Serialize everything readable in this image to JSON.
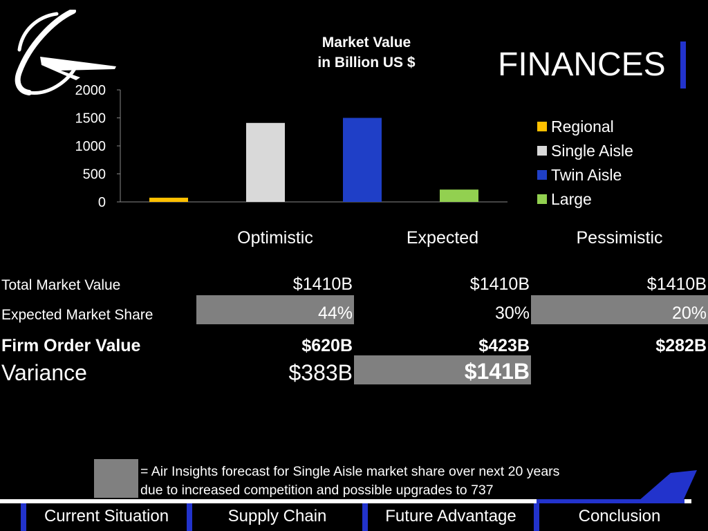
{
  "header": {
    "title": "FINANCES"
  },
  "chart_data": {
    "type": "bar",
    "title": "Market Value\nin Billion US $",
    "title_lines": [
      "Market Value",
      "in Billion US $"
    ],
    "categories": [
      "Regional",
      "Single Aisle",
      "Twin Aisle",
      "Large"
    ],
    "values": [
      75,
      1410,
      1500,
      220
    ],
    "colors": [
      "#ffc000",
      "#d9d9d9",
      "#1f3fc7",
      "#92d050"
    ],
    "legend": [
      "Regional",
      "Single Aisle",
      "Twin Aisle",
      "Large"
    ],
    "legend_position": "right",
    "ylim": [
      0,
      2000
    ],
    "yticks": [
      "0",
      "500",
      "1000",
      "1500",
      "2000"
    ],
    "xlabel": "",
    "ylabel": "",
    "grid": false
  },
  "table": {
    "scenarios": [
      "Optimistic",
      "Expected",
      "Pessimistic"
    ],
    "rows": {
      "total": {
        "label": "Total Market Value",
        "values": [
          "$1410B",
          "$1410B",
          "$1410B"
        ]
      },
      "share": {
        "label": "Expected Market Share",
        "values": [
          "44%",
          "30%",
          "20%"
        ]
      },
      "firm": {
        "label": "Firm Order Value",
        "values": [
          "$620B",
          "$423B",
          "$282B"
        ]
      },
      "variance": {
        "label": "Variance",
        "values": [
          "$383B",
          "$141B"
        ]
      }
    },
    "highlight_color": "#808080"
  },
  "legend_note": {
    "line1": "= Air Insights forecast for Single Aisle market share over next 20 years",
    "line2": "due to increased competition and possible upgrades to 737"
  },
  "footer": {
    "tabs": [
      "Current Situation",
      "Supply Chain",
      "Future Advantage",
      "Conclusion"
    ],
    "active_tab": "Conclusion",
    "accent_color": "#2233cc"
  },
  "icons": {
    "logo": "boeing-logo-icon",
    "plane": "airplane-tail-icon"
  }
}
